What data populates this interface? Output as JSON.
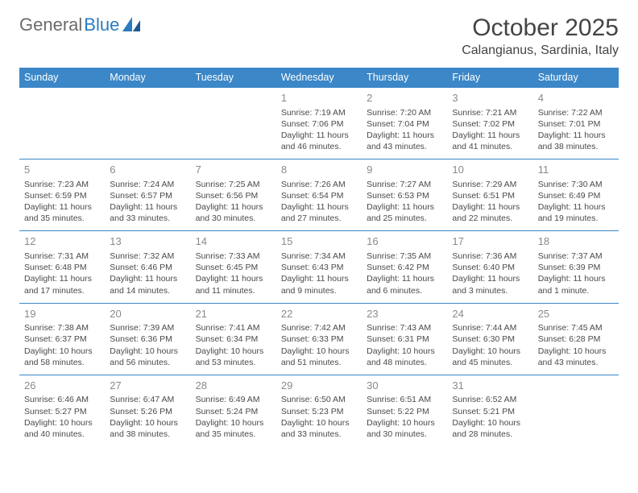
{
  "logo": {
    "text1": "General",
    "text2": "Blue"
  },
  "title": "October 2025",
  "location": "Calangianus, Sardinia, Italy",
  "colors": {
    "header_bg": "#3b87c8",
    "header_text": "#ffffff",
    "border": "#3b87c8",
    "daynum": "#8a8a8a",
    "body_text": "#4a4a4a",
    "logo_gray": "#6b6b6b",
    "logo_blue": "#2b7bbf"
  },
  "weekdays": [
    "Sunday",
    "Monday",
    "Tuesday",
    "Wednesday",
    "Thursday",
    "Friday",
    "Saturday"
  ],
  "weeks": [
    [
      {
        "n": "",
        "sunrise": "",
        "sunset": "",
        "daylight": ""
      },
      {
        "n": "",
        "sunrise": "",
        "sunset": "",
        "daylight": ""
      },
      {
        "n": "",
        "sunrise": "",
        "sunset": "",
        "daylight": ""
      },
      {
        "n": "1",
        "sunrise": "Sunrise: 7:19 AM",
        "sunset": "Sunset: 7:06 PM",
        "daylight": "Daylight: 11 hours and 46 minutes."
      },
      {
        "n": "2",
        "sunrise": "Sunrise: 7:20 AM",
        "sunset": "Sunset: 7:04 PM",
        "daylight": "Daylight: 11 hours and 43 minutes."
      },
      {
        "n": "3",
        "sunrise": "Sunrise: 7:21 AM",
        "sunset": "Sunset: 7:02 PM",
        "daylight": "Daylight: 11 hours and 41 minutes."
      },
      {
        "n": "4",
        "sunrise": "Sunrise: 7:22 AM",
        "sunset": "Sunset: 7:01 PM",
        "daylight": "Daylight: 11 hours and 38 minutes."
      }
    ],
    [
      {
        "n": "5",
        "sunrise": "Sunrise: 7:23 AM",
        "sunset": "Sunset: 6:59 PM",
        "daylight": "Daylight: 11 hours and 35 minutes."
      },
      {
        "n": "6",
        "sunrise": "Sunrise: 7:24 AM",
        "sunset": "Sunset: 6:57 PM",
        "daylight": "Daylight: 11 hours and 33 minutes."
      },
      {
        "n": "7",
        "sunrise": "Sunrise: 7:25 AM",
        "sunset": "Sunset: 6:56 PM",
        "daylight": "Daylight: 11 hours and 30 minutes."
      },
      {
        "n": "8",
        "sunrise": "Sunrise: 7:26 AM",
        "sunset": "Sunset: 6:54 PM",
        "daylight": "Daylight: 11 hours and 27 minutes."
      },
      {
        "n": "9",
        "sunrise": "Sunrise: 7:27 AM",
        "sunset": "Sunset: 6:53 PM",
        "daylight": "Daylight: 11 hours and 25 minutes."
      },
      {
        "n": "10",
        "sunrise": "Sunrise: 7:29 AM",
        "sunset": "Sunset: 6:51 PM",
        "daylight": "Daylight: 11 hours and 22 minutes."
      },
      {
        "n": "11",
        "sunrise": "Sunrise: 7:30 AM",
        "sunset": "Sunset: 6:49 PM",
        "daylight": "Daylight: 11 hours and 19 minutes."
      }
    ],
    [
      {
        "n": "12",
        "sunrise": "Sunrise: 7:31 AM",
        "sunset": "Sunset: 6:48 PM",
        "daylight": "Daylight: 11 hours and 17 minutes."
      },
      {
        "n": "13",
        "sunrise": "Sunrise: 7:32 AM",
        "sunset": "Sunset: 6:46 PM",
        "daylight": "Daylight: 11 hours and 14 minutes."
      },
      {
        "n": "14",
        "sunrise": "Sunrise: 7:33 AM",
        "sunset": "Sunset: 6:45 PM",
        "daylight": "Daylight: 11 hours and 11 minutes."
      },
      {
        "n": "15",
        "sunrise": "Sunrise: 7:34 AM",
        "sunset": "Sunset: 6:43 PM",
        "daylight": "Daylight: 11 hours and 9 minutes."
      },
      {
        "n": "16",
        "sunrise": "Sunrise: 7:35 AM",
        "sunset": "Sunset: 6:42 PM",
        "daylight": "Daylight: 11 hours and 6 minutes."
      },
      {
        "n": "17",
        "sunrise": "Sunrise: 7:36 AM",
        "sunset": "Sunset: 6:40 PM",
        "daylight": "Daylight: 11 hours and 3 minutes."
      },
      {
        "n": "18",
        "sunrise": "Sunrise: 7:37 AM",
        "sunset": "Sunset: 6:39 PM",
        "daylight": "Daylight: 11 hours and 1 minute."
      }
    ],
    [
      {
        "n": "19",
        "sunrise": "Sunrise: 7:38 AM",
        "sunset": "Sunset: 6:37 PM",
        "daylight": "Daylight: 10 hours and 58 minutes."
      },
      {
        "n": "20",
        "sunrise": "Sunrise: 7:39 AM",
        "sunset": "Sunset: 6:36 PM",
        "daylight": "Daylight: 10 hours and 56 minutes."
      },
      {
        "n": "21",
        "sunrise": "Sunrise: 7:41 AM",
        "sunset": "Sunset: 6:34 PM",
        "daylight": "Daylight: 10 hours and 53 minutes."
      },
      {
        "n": "22",
        "sunrise": "Sunrise: 7:42 AM",
        "sunset": "Sunset: 6:33 PM",
        "daylight": "Daylight: 10 hours and 51 minutes."
      },
      {
        "n": "23",
        "sunrise": "Sunrise: 7:43 AM",
        "sunset": "Sunset: 6:31 PM",
        "daylight": "Daylight: 10 hours and 48 minutes."
      },
      {
        "n": "24",
        "sunrise": "Sunrise: 7:44 AM",
        "sunset": "Sunset: 6:30 PM",
        "daylight": "Daylight: 10 hours and 45 minutes."
      },
      {
        "n": "25",
        "sunrise": "Sunrise: 7:45 AM",
        "sunset": "Sunset: 6:28 PM",
        "daylight": "Daylight: 10 hours and 43 minutes."
      }
    ],
    [
      {
        "n": "26",
        "sunrise": "Sunrise: 6:46 AM",
        "sunset": "Sunset: 5:27 PM",
        "daylight": "Daylight: 10 hours and 40 minutes."
      },
      {
        "n": "27",
        "sunrise": "Sunrise: 6:47 AM",
        "sunset": "Sunset: 5:26 PM",
        "daylight": "Daylight: 10 hours and 38 minutes."
      },
      {
        "n": "28",
        "sunrise": "Sunrise: 6:49 AM",
        "sunset": "Sunset: 5:24 PM",
        "daylight": "Daylight: 10 hours and 35 minutes."
      },
      {
        "n": "29",
        "sunrise": "Sunrise: 6:50 AM",
        "sunset": "Sunset: 5:23 PM",
        "daylight": "Daylight: 10 hours and 33 minutes."
      },
      {
        "n": "30",
        "sunrise": "Sunrise: 6:51 AM",
        "sunset": "Sunset: 5:22 PM",
        "daylight": "Daylight: 10 hours and 30 minutes."
      },
      {
        "n": "31",
        "sunrise": "Sunrise: 6:52 AM",
        "sunset": "Sunset: 5:21 PM",
        "daylight": "Daylight: 10 hours and 28 minutes."
      },
      {
        "n": "",
        "sunrise": "",
        "sunset": "",
        "daylight": ""
      }
    ]
  ]
}
